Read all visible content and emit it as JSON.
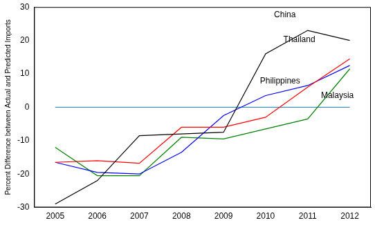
{
  "chart_data": {
    "type": "line",
    "y_label": "Percent Difference between Actual and Predicted Imports",
    "categories": [
      "2005",
      "2006",
      "2007",
      "2008",
      "2009",
      "2010",
      "2011",
      "2012"
    ],
    "series": [
      {
        "name": "China",
        "color": "#000000",
        "values": [
          -29,
          -22,
          -8.5,
          -8,
          -7.5,
          16,
          23,
          20
        ]
      },
      {
        "name": "Thailand",
        "color": "#ff0000",
        "values": [
          -16.5,
          -16,
          -16.8,
          -6,
          -6,
          -3,
          6,
          14.5
        ]
      },
      {
        "name": "Philippines",
        "color": "#0000ff",
        "values": [
          -16.5,
          -19.5,
          -20,
          -13.5,
          -2.5,
          3.5,
          6.5,
          12.5
        ]
      },
      {
        "name": "Malaysia",
        "color": "#008000",
        "values": [
          -12,
          -20.5,
          -20.5,
          -9,
          -9.5,
          -6.5,
          -3.5,
          11.5
        ]
      }
    ],
    "ylim": [
      -30,
      30
    ],
    "yticks": [
      -30,
      -20,
      -10,
      0,
      10,
      20,
      30
    ],
    "grid": false
  }
}
